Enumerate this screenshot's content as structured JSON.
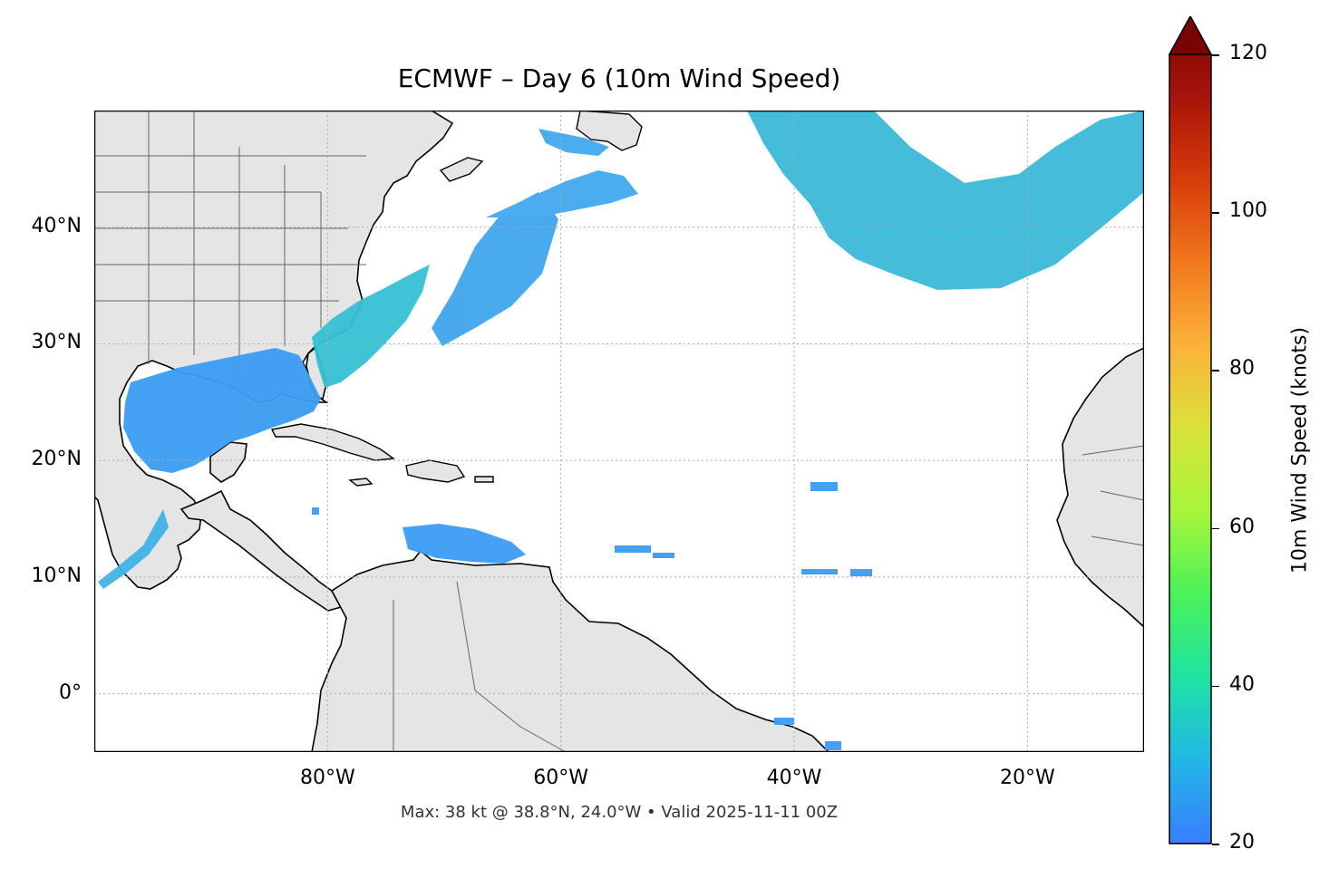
{
  "title": "ECMWF – Day 6 (10m Wind Speed)",
  "footer": "Max: 38 kt @ 38.8°N, 24.0°W • Valid 2025-11-11 00Z",
  "map": {
    "lon_range": [
      -100,
      -10
    ],
    "lat_range": [
      -5,
      50
    ],
    "lat_ticks": [
      {
        "value": 40,
        "label": "40°N"
      },
      {
        "value": 30,
        "label": "30°N"
      },
      {
        "value": 20,
        "label": "20°N"
      },
      {
        "value": 10,
        "label": "10°N"
      },
      {
        "value": 0,
        "label": "0°"
      }
    ],
    "lon_ticks": [
      {
        "value": -80,
        "label": "80°W"
      },
      {
        "value": -60,
        "label": "60°W"
      },
      {
        "value": -40,
        "label": "40°W"
      },
      {
        "value": -20,
        "label": "20°W"
      }
    ],
    "gridlines": true,
    "land_color": "#e5e5e5",
    "ocean_color": "#ffffff"
  },
  "colorbar": {
    "label": "10m Wind Speed (knots)",
    "min": 20,
    "max": 120,
    "extend": "max",
    "ticks": [
      {
        "value": 120,
        "label": "120"
      },
      {
        "value": 100,
        "label": "100"
      },
      {
        "value": 80,
        "label": "80"
      },
      {
        "value": 60,
        "label": "60"
      },
      {
        "value": 40,
        "label": "40"
      },
      {
        "value": 20,
        "label": "20"
      }
    ],
    "stops": [
      "#3a7eff",
      "#22b6e6",
      "#1fe3a4",
      "#49f25a",
      "#a6f53a",
      "#d8e338",
      "#fbb33a",
      "#f27a1e",
      "#d83d0a",
      "#a8140a",
      "#7a0403"
    ]
  }
}
